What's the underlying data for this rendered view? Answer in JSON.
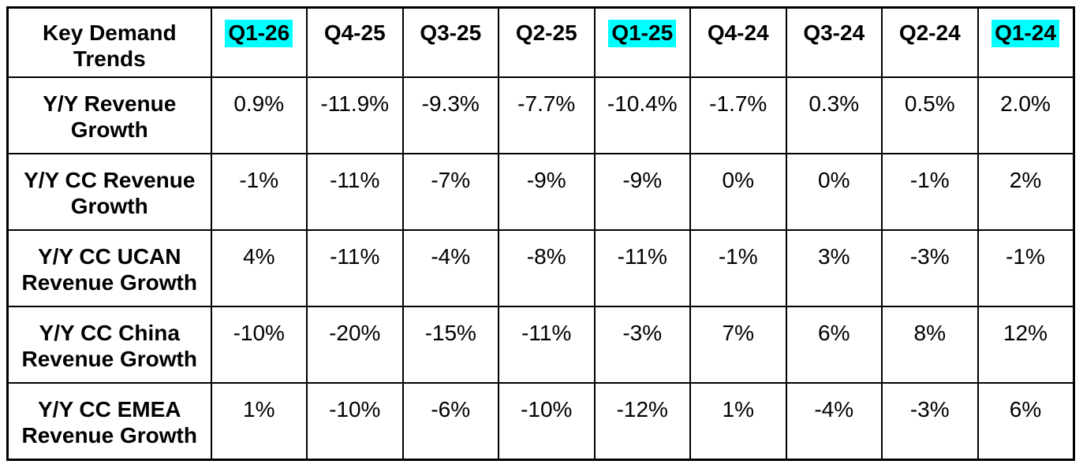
{
  "chart_data": {
    "type": "table",
    "title": "Key Demand Trends",
    "corner_label": "Key Demand Trends",
    "highlight_color": "#00ffff",
    "border_color": "#000000",
    "text_color": "#000000",
    "columns": [
      {
        "label": "Q1-26",
        "highlighted": true
      },
      {
        "label": "Q4-25",
        "highlighted": false
      },
      {
        "label": "Q3-25",
        "highlighted": false
      },
      {
        "label": "Q2-25",
        "highlighted": false
      },
      {
        "label": "Q1-25",
        "highlighted": true
      },
      {
        "label": "Q4-24",
        "highlighted": false
      },
      {
        "label": "Q3-24",
        "highlighted": false
      },
      {
        "label": "Q2-24",
        "highlighted": false
      },
      {
        "label": "Q1-24",
        "highlighted": true
      }
    ],
    "rows": [
      {
        "label": "Y/Y Revenue Growth",
        "values": [
          "0.9%",
          "-11.9%",
          "-9.3%",
          "-7.7%",
          "-10.4%",
          "-1.7%",
          "0.3%",
          "0.5%",
          "2.0%"
        ]
      },
      {
        "label": "Y/Y CC Revenue Growth",
        "values": [
          "-1%",
          "-11%",
          "-7%",
          "-9%",
          "-9%",
          "0%",
          "0%",
          "-1%",
          "2%"
        ]
      },
      {
        "label": "Y/Y CC UCAN Revenue Growth",
        "values": [
          "4%",
          "-11%",
          "-4%",
          "-8%",
          "-11%",
          "-1%",
          "3%",
          "-3%",
          "-1%"
        ]
      },
      {
        "label": "Y/Y CC China Revenue Growth",
        "values": [
          "-10%",
          "-20%",
          "-15%",
          "-11%",
          "-3%",
          "7%",
          "6%",
          "8%",
          "12%"
        ]
      },
      {
        "label": "Y/Y CC EMEA Revenue Growth",
        "values": [
          "1%",
          "-10%",
          "-6%",
          "-10%",
          "-12%",
          "1%",
          "-4%",
          "-3%",
          "6%"
        ]
      }
    ]
  }
}
